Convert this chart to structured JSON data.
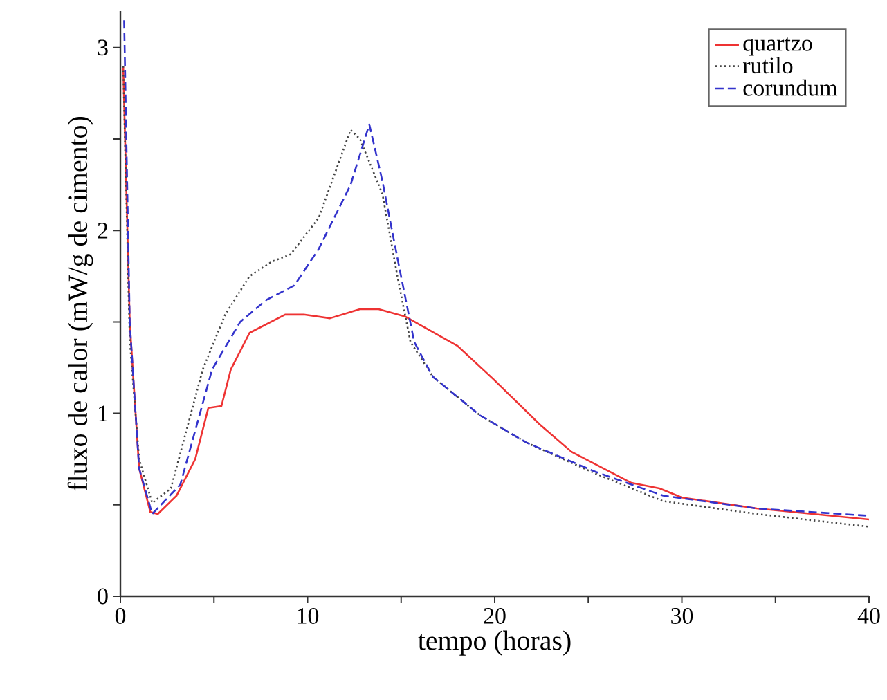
{
  "chart_data": {
    "type": "line",
    "xlabel": "tempo (horas)",
    "ylabel": "fluxo de calor (mW/g de cimento)",
    "xlim": [
      0,
      40
    ],
    "ylim": [
      0,
      3.2
    ],
    "xticks": [
      0,
      {
        "value": 5,
        "label": null
      },
      10,
      {
        "value": 15,
        "label": null
      },
      20,
      {
        "value": 25,
        "label": null
      },
      30,
      {
        "value": 35,
        "label": null
      },
      40
    ],
    "yticks": [
      0,
      {
        "value": 0.5,
        "label": null
      },
      1,
      {
        "value": 1.5,
        "label": null
      },
      2,
      {
        "value": 2.5,
        "label": null
      },
      3
    ],
    "grid": false,
    "legend": "top right",
    "marker": "none",
    "series": [
      {
        "name": "quartzo",
        "color": "#ee3333",
        "line_style": "solid",
        "x": [
          0.15,
          0.5,
          1.0,
          1.6,
          2.0,
          3.0,
          4.0,
          4.7,
          5.4,
          5.9,
          6.9,
          8.8,
          9.8,
          11.2,
          12.8,
          13.8,
          15.2,
          18.0,
          19.9,
          22.4,
          24.1,
          27.3,
          28.8,
          30.0,
          34.0,
          40.0
        ],
        "values": [
          2.9,
          1.5,
          0.7,
          0.46,
          0.45,
          0.55,
          0.75,
          1.03,
          1.04,
          1.24,
          1.44,
          1.54,
          1.54,
          1.52,
          1.57,
          1.57,
          1.53,
          1.37,
          1.19,
          0.94,
          0.79,
          0.62,
          0.59,
          0.54,
          0.48,
          0.42
        ]
      },
      {
        "name": "rutilo",
        "color": "#444444",
        "line_style": "dotted",
        "x": [
          0.15,
          0.5,
          1.0,
          1.7,
          2.7,
          4.4,
          5.6,
          6.9,
          8.1,
          9.1,
          10.6,
          12.3,
          12.8,
          14.0,
          14.8,
          15.5,
          16.7,
          19.2,
          21.7,
          25.4,
          29.0,
          34.0,
          40.0
        ],
        "values": [
          2.9,
          1.4,
          0.75,
          0.51,
          0.59,
          1.24,
          1.54,
          1.75,
          1.83,
          1.87,
          2.07,
          2.55,
          2.5,
          2.2,
          1.75,
          1.39,
          1.2,
          0.99,
          0.84,
          0.67,
          0.52,
          0.45,
          0.38
        ]
      },
      {
        "name": "corundum",
        "color": "#3333cc",
        "line_style": "dashed",
        "x": [
          0.2,
          0.5,
          1.0,
          1.7,
          3.2,
          4.9,
          6.4,
          7.8,
          9.3,
          10.6,
          12.3,
          13.3,
          14.0,
          14.8,
          15.7,
          16.7,
          19.2,
          21.7,
          25.4,
          29.0,
          34.0,
          40.0
        ],
        "values": [
          3.15,
          1.5,
          0.7,
          0.45,
          0.61,
          1.24,
          1.5,
          1.62,
          1.7,
          1.9,
          2.25,
          2.58,
          2.27,
          1.85,
          1.39,
          1.2,
          0.99,
          0.84,
          0.68,
          0.55,
          0.48,
          0.44
        ]
      }
    ]
  }
}
